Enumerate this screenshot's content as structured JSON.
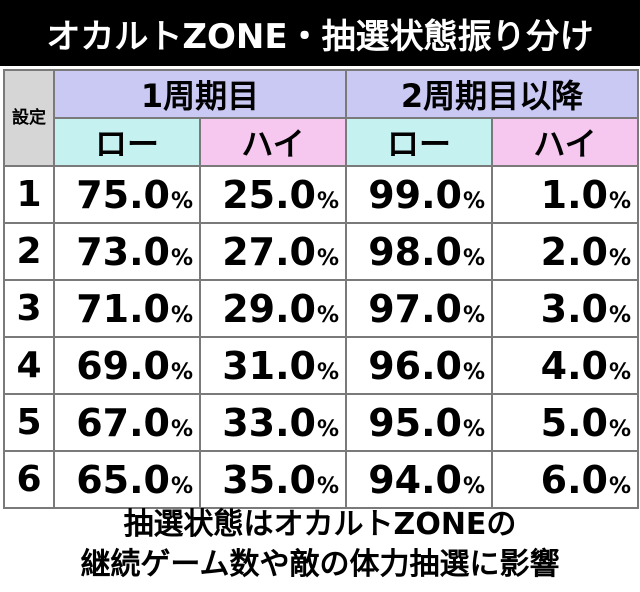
{
  "title": "オカルトZONE・抽選状態振り分け",
  "table": {
    "setting_header": "設定",
    "groups": [
      {
        "label": "1周期目"
      },
      {
        "label": "2周期目以降"
      }
    ],
    "sub_headers": [
      "ロー",
      "ハイ",
      "ロー",
      "ハイ"
    ],
    "rows": [
      {
        "setting": "1",
        "values": [
          "75.0",
          "25.0",
          "99.0",
          "1.0"
        ]
      },
      {
        "setting": "2",
        "values": [
          "73.0",
          "27.0",
          "98.0",
          "2.0"
        ]
      },
      {
        "setting": "3",
        "values": [
          "71.0",
          "29.0",
          "97.0",
          "3.0"
        ]
      },
      {
        "setting": "4",
        "values": [
          "69.0",
          "31.0",
          "96.0",
          "4.0"
        ]
      },
      {
        "setting": "5",
        "values": [
          "67.0",
          "33.0",
          "95.0",
          "5.0"
        ]
      },
      {
        "setting": "6",
        "values": [
          "65.0",
          "35.0",
          "94.0",
          "6.0"
        ]
      }
    ],
    "percent_sign": "%"
  },
  "footer": {
    "line1": "抽選状態はオカルトZONEの",
    "line2": "継続ゲーム数や敵の体力抽選に影響"
  },
  "colors": {
    "title_bg": "#000000",
    "group_header": "#c9c9f3",
    "low_header": "#c6f1f1",
    "high_header": "#f6c8f0",
    "setting_header": "#d6d6d6"
  }
}
